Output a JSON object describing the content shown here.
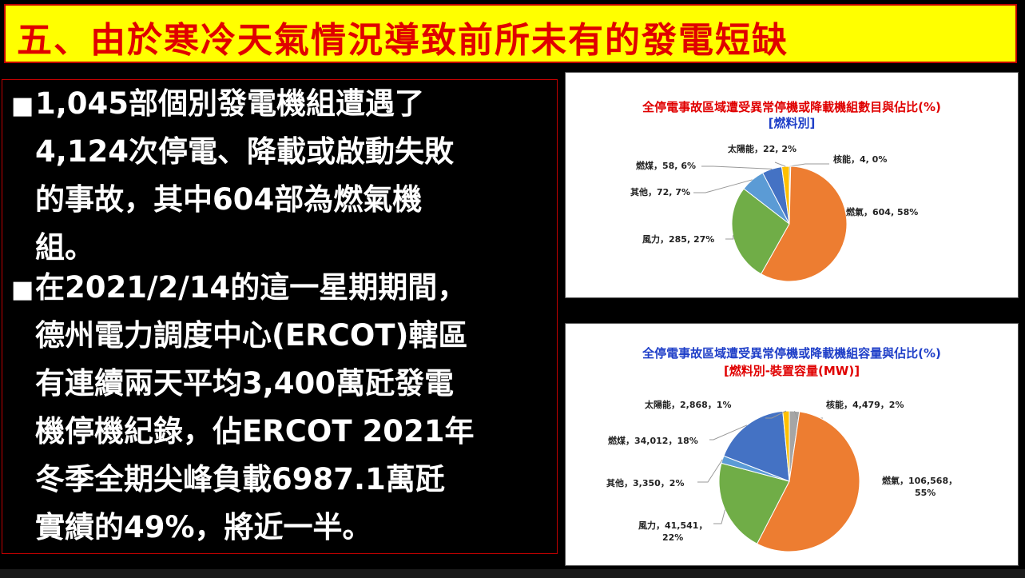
{
  "slide": {
    "title": "五、由於寒冷天氣情況導致前所未有的發電短缺",
    "bullet_marker": "■",
    "bullet1": [
      "1,045部個別發電機組遭遇了",
      "4,124次停電、降載或啟動失敗",
      "的事故，其中604部為燃氣機",
      "組。"
    ],
    "bullet2": [
      "在2021/2/14的這一星期期間，",
      "德州電力調度中心(ERCOT)轄區",
      "有連續兩天平均3,400萬瓩發電",
      "機停機紀錄，佔ERCOT 2021年",
      "冬季全期尖峰負載6987.1萬瓩",
      "實績的49%，將近一半。"
    ]
  },
  "colors": {
    "title_bg": "#ffff00",
    "title_text": "#e00000",
    "gas": "#ed7d31",
    "wind": "#70ad47",
    "other": "#5b9bd5",
    "coal": "#4472c4",
    "solar": "#ffc000",
    "nuclear": "#a5a5a5"
  },
  "chart_data": [
    {
      "type": "pie",
      "title": "全停電事故區域遭受異常停機或降載機組數目與佔比(%)",
      "subtitle": "[燃料別]",
      "slices": [
        {
          "name": "燃氣",
          "value": 604,
          "percent": "58%",
          "color": "#ed7d31",
          "label": "燃氣，604, 58%"
        },
        {
          "name": "風力",
          "value": 285,
          "percent": "27%",
          "color": "#70ad47",
          "label": "風力，285, 27%"
        },
        {
          "name": "其他",
          "value": 72,
          "percent": "7%",
          "color": "#5b9bd5",
          "label": "其他，72, 7%"
        },
        {
          "name": "燃煤",
          "value": 58,
          "percent": "6%",
          "color": "#4472c4",
          "label": "燃煤，58, 6%"
        },
        {
          "name": "太陽能",
          "value": 22,
          "percent": "2%",
          "color": "#ffc000",
          "label": "太陽能，22, 2%"
        },
        {
          "name": "核能",
          "value": 4,
          "percent": "0%",
          "color": "#a5a5a5",
          "label": "核能，4, 0%"
        }
      ]
    },
    {
      "type": "pie",
      "title": "全停電事故區域遭受異常停機或降載機組容量與佔比(%)",
      "subtitle": "[燃料別-裝置容量(MW)]",
      "slices": [
        {
          "name": "燃氣",
          "value": 106568,
          "percent": "55%",
          "color": "#ed7d31",
          "label": [
            "燃氣，106,568，",
            "55%"
          ]
        },
        {
          "name": "風力",
          "value": 41541,
          "percent": "22%",
          "color": "#70ad47",
          "label": [
            "風力，41,541，",
            "22%"
          ]
        },
        {
          "name": "其他",
          "value": 3350,
          "percent": "2%",
          "color": "#5b9bd5",
          "label": [
            "其他，3,350，2%"
          ]
        },
        {
          "name": "燃煤",
          "value": 34012,
          "percent": "18%",
          "color": "#4472c4",
          "label": [
            "燃煤，34,012，18%"
          ]
        },
        {
          "name": "太陽能",
          "value": 2868,
          "percent": "1%",
          "color": "#ffc000",
          "label": [
            "太陽能，2,868，1%"
          ]
        },
        {
          "name": "核能",
          "value": 4479,
          "percent": "2%",
          "color": "#a5a5a5",
          "label": [
            "核能，4,479，2%"
          ]
        }
      ]
    }
  ]
}
